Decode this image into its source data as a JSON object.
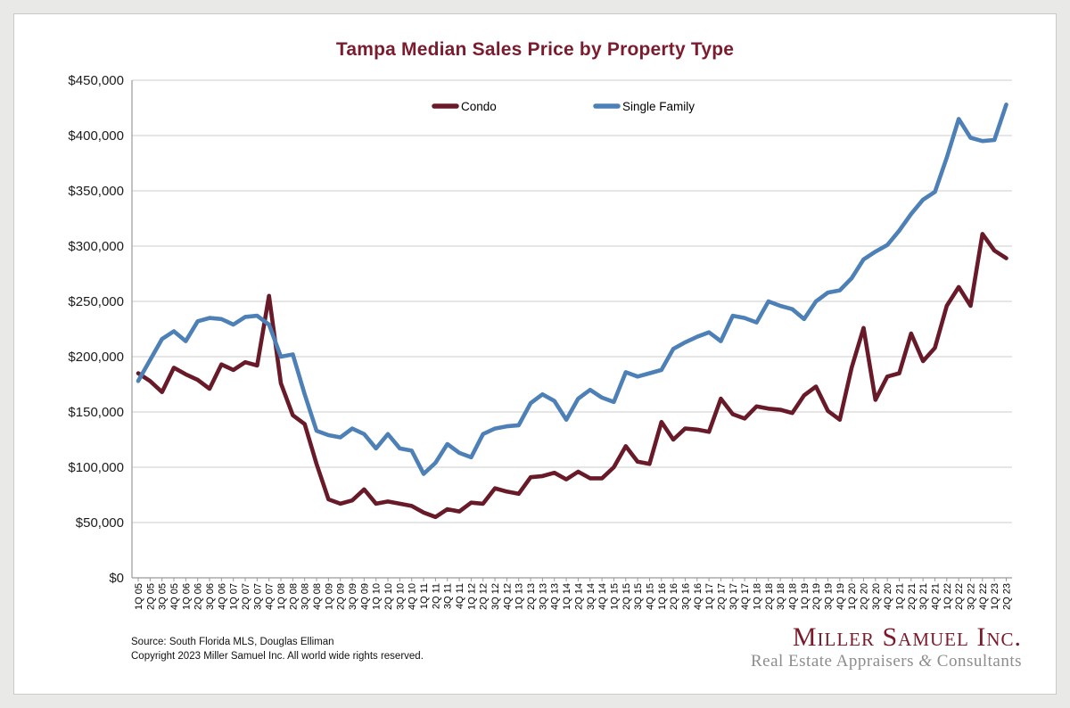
{
  "title": "Tampa Median Sales Price by Property Type",
  "footer": {
    "source_line": "Source: South Florida MLS, Douglas Elliman",
    "copyright_line": "Copyright 2023 Miller Samuel Inc.  All world wide rights reserved."
  },
  "logo": {
    "name": "Miller Samuel Inc.",
    "tagline_pre": "Real Estate Appraisers ",
    "tagline_amp": "&",
    "tagline_post": " Consultants"
  },
  "chart_data": {
    "type": "line",
    "title": "Tampa Median Sales Price by Property Type",
    "xlabel": "",
    "ylabel": "",
    "ylim": [
      0,
      450000
    ],
    "grid": true,
    "legend_position": "top-inside",
    "axis_color": "#9a9a9a",
    "gridline_color": "#cccccc",
    "y_tick_values": [
      0,
      50000,
      100000,
      150000,
      200000,
      250000,
      300000,
      350000,
      400000,
      450000
    ],
    "y_tick_labels": [
      "$0",
      "$50,000",
      "$100,000",
      "$150,000",
      "$200,000",
      "$250,000",
      "$300,000",
      "$350,000",
      "$400,000",
      "$450,000"
    ],
    "x_labels": [
      "1Q 05",
      "2Q 05",
      "3Q 05",
      "4Q 05",
      "1Q 06",
      "2Q 06",
      "3Q 06",
      "4Q 06",
      "1Q 07",
      "2Q 07",
      "3Q 07",
      "4Q 07",
      "1Q 08",
      "2Q 08",
      "3Q 08",
      "4Q 08",
      "1Q 09",
      "2Q 09",
      "3Q 09",
      "4Q 09",
      "1Q 10",
      "2Q 10",
      "3Q 10",
      "4Q 10",
      "1Q 11",
      "2Q 11",
      "3Q 11",
      "4Q 11",
      "1Q 12",
      "2Q 12",
      "3Q 12",
      "4Q 12",
      "1Q 13",
      "2Q 13",
      "3Q 13",
      "4Q 13",
      "1Q 14",
      "2Q 14",
      "3Q 14",
      "4Q 14",
      "1Q 15",
      "2Q 15",
      "3Q 15",
      "4Q 15",
      "1Q 16",
      "2Q 16",
      "3Q 16",
      "4Q 16",
      "1Q 17",
      "2Q 17",
      "3Q 17",
      "4Q 17",
      "1Q 18",
      "2Q 18",
      "3Q 18",
      "4Q 18",
      "1Q 19",
      "2Q 19",
      "3Q 19",
      "4Q 19",
      "1Q 20",
      "2Q 20",
      "3Q 20",
      "4Q 20",
      "1Q 21",
      "2Q 21",
      "3Q 21",
      "4Q 21",
      "1Q 22",
      "2Q 22",
      "3Q 22",
      "4Q 22",
      "1Q 23",
      "2Q 23"
    ],
    "series": [
      {
        "name": "Condo",
        "color": "#681a29",
        "values": [
          185000,
          178000,
          168000,
          190000,
          184000,
          179000,
          171000,
          193000,
          188000,
          195000,
          192000,
          255000,
          176000,
          147000,
          139000,
          103000,
          71000,
          67000,
          70000,
          80000,
          67000,
          69000,
          67000,
          65000,
          59000,
          55000,
          62000,
          60000,
          68000,
          67000,
          81000,
          78000,
          76000,
          91000,
          92000,
          95000,
          89000,
          96000,
          90000,
          90000,
          100000,
          119000,
          105000,
          103000,
          141000,
          125000,
          135000,
          134000,
          132000,
          162000,
          148000,
          144000,
          155000,
          153000,
          152000,
          149000,
          165000,
          173000,
          151000,
          143000,
          190000,
          226000,
          161000,
          182000,
          185000,
          221000,
          196000,
          208000,
          246000,
          263000,
          246000,
          311000,
          296000,
          289000
        ]
      },
      {
        "name": "Single Family",
        "color": "#4d80b6",
        "values": [
          178000,
          197000,
          216000,
          223000,
          214000,
          232000,
          235000,
          234000,
          229000,
          236000,
          237000,
          229000,
          200000,
          202000,
          166000,
          133000,
          129000,
          127000,
          135000,
          130000,
          117000,
          130000,
          117000,
          115000,
          94000,
          104000,
          121000,
          113000,
          109000,
          130000,
          135000,
          137000,
          138000,
          158000,
          166000,
          160000,
          143000,
          162000,
          170000,
          163000,
          159000,
          186000,
          182000,
          185000,
          188000,
          207000,
          213000,
          218000,
          222000,
          214000,
          237000,
          235000,
          231000,
          250000,
          246000,
          243000,
          234000,
          250000,
          258000,
          260000,
          271000,
          288000,
          295000,
          301000,
          314000,
          329000,
          342000,
          349000,
          380000,
          415000,
          398000,
          395000,
          396000,
          428000
        ]
      }
    ]
  }
}
